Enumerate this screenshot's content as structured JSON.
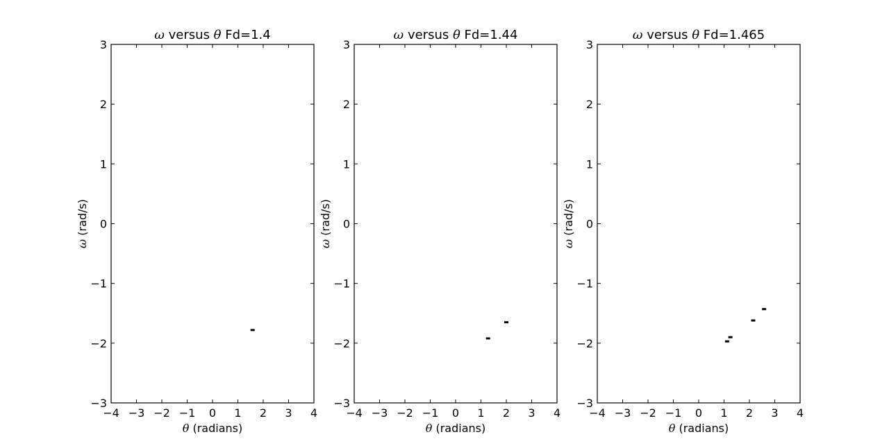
{
  "chart_data": [
    {
      "type": "scatter",
      "title": "ω versus θ  Fd=1.4",
      "title_symbol": "ω",
      "title_mid": " versus ",
      "title_symbol2": "θ",
      "title_tail": "  Fd=1.4",
      "xlabel_symbol": "θ",
      "xlabel_text": " (radians)",
      "ylabel_symbol": "ω",
      "ylabel_text": " (rad/s)",
      "xlim": [
        -4,
        4
      ],
      "ylim": [
        -3,
        3
      ],
      "xticks": [
        -4,
        -3,
        -2,
        -1,
        0,
        1,
        2,
        3,
        4
      ],
      "yticks": [
        -3,
        -2,
        -1,
        0,
        1,
        2,
        3
      ],
      "grid": false,
      "points": [
        {
          "x": 1.58,
          "y": -1.78
        }
      ]
    },
    {
      "type": "scatter",
      "title": "ω versus θ  Fd=1.44",
      "title_symbol": "ω",
      "title_mid": " versus ",
      "title_symbol2": "θ",
      "title_tail": "  Fd=1.44",
      "xlabel_symbol": "θ",
      "xlabel_text": " (radians)",
      "ylabel_symbol": "ω",
      "ylabel_text": " (rad/s)",
      "xlim": [
        -4,
        4
      ],
      "ylim": [
        -3,
        3
      ],
      "xticks": [
        -4,
        -3,
        -2,
        -1,
        0,
        1,
        2,
        3,
        4
      ],
      "yticks": [
        -3,
        -2,
        -1,
        0,
        1,
        2,
        3
      ],
      "grid": false,
      "points": [
        {
          "x": 1.28,
          "y": -1.92
        },
        {
          "x": 2.0,
          "y": -1.65
        }
      ]
    },
    {
      "type": "scatter",
      "title": "ω versus θ  Fd=1.465",
      "title_symbol": "ω",
      "title_mid": " versus ",
      "title_symbol2": "θ",
      "title_tail": "  Fd=1.465",
      "xlabel_symbol": "θ",
      "xlabel_text": " (radians)",
      "ylabel_symbol": "ω",
      "ylabel_text": " (rad/s)",
      "xlim": [
        -4,
        4
      ],
      "ylim": [
        -3,
        3
      ],
      "xticks": [
        -4,
        -3,
        -2,
        -1,
        0,
        1,
        2,
        3,
        4
      ],
      "yticks": [
        -3,
        -2,
        -1,
        0,
        1,
        2,
        3
      ],
      "grid": false,
      "points": [
        {
          "x": 1.12,
          "y": -1.97
        },
        {
          "x": 1.25,
          "y": -1.9
        },
        {
          "x": 2.15,
          "y": -1.62
        },
        {
          "x": 2.58,
          "y": -1.43
        }
      ]
    }
  ]
}
